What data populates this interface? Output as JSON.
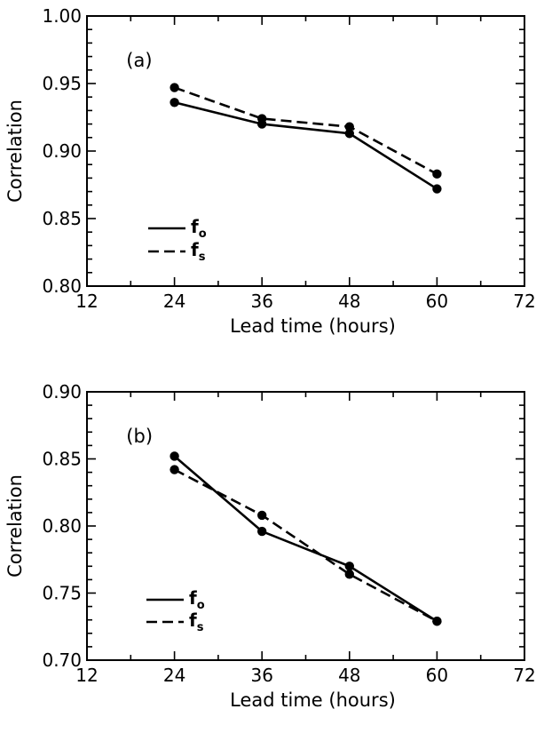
{
  "chart_data": [
    {
      "type": "line",
      "panel_label": "(a)",
      "xlabel": "Lead time (hours)",
      "ylabel": "Correlation",
      "xlim": [
        12,
        72
      ],
      "ylim": [
        0.8,
        1.0
      ],
      "x_ticks": [
        "12",
        "24",
        "36",
        "48",
        "60",
        "72"
      ],
      "y_ticks": [
        "0.80",
        "0.85",
        "0.90",
        "0.95",
        "1.00"
      ],
      "x": [
        24,
        36,
        48,
        60
      ],
      "series": [
        {
          "name": "fo",
          "name_main": "f",
          "name_sub": "o",
          "style": "solid",
          "values": [
            0.936,
            0.92,
            0.913,
            0.872
          ]
        },
        {
          "name": "fs",
          "name_main": "f",
          "name_sub": "s",
          "style": "dashed",
          "values": [
            0.947,
            0.924,
            0.918,
            0.883
          ]
        }
      ],
      "legend_placement": "lower-left",
      "grid": false
    },
    {
      "type": "line",
      "panel_label": "(b)",
      "xlabel": "Lead time (hours)",
      "ylabel": "Correlation",
      "xlim": [
        12,
        72
      ],
      "ylim": [
        0.7,
        0.9
      ],
      "x_ticks": [
        "12",
        "24",
        "36",
        "48",
        "60",
        "72"
      ],
      "y_ticks": [
        "0.70",
        "0.75",
        "0.80",
        "0.85",
        "0.90"
      ],
      "x": [
        24,
        36,
        48,
        60
      ],
      "series": [
        {
          "name": "fo",
          "name_main": "f",
          "name_sub": "o",
          "style": "solid",
          "values": [
            0.852,
            0.796,
            0.77,
            0.729
          ]
        },
        {
          "name": "fs",
          "name_main": "f",
          "name_sub": "s",
          "style": "dashed",
          "values": [
            0.842,
            0.808,
            0.764,
            0.729
          ]
        }
      ],
      "legend_placement": "lower-left",
      "grid": false
    }
  ]
}
